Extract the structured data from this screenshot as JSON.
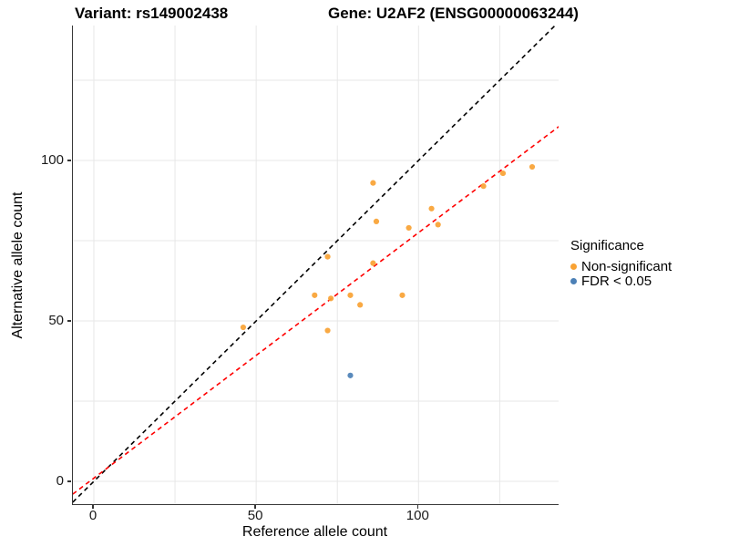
{
  "titles": {
    "variant": "Variant: rs149002438",
    "gene": "Gene: U2AF2 (ENSG00000063244)"
  },
  "axes": {
    "x": {
      "label": "Reference allele count",
      "ticks": [
        0,
        50,
        100
      ]
    },
    "y": {
      "label": "Alternative allele count",
      "ticks": [
        0,
        50,
        100
      ]
    }
  },
  "legend": {
    "title": "Significance",
    "items": [
      {
        "label": "Non-significant",
        "color": "#f9a233"
      },
      {
        "label": "FDR < 0.05",
        "color": "#4c80b6"
      }
    ]
  },
  "colors": {
    "grid": "#e7e7e7",
    "axis_line": "#383838",
    "identity_line": "#000000",
    "fit_line": "#ff0000"
  },
  "chart_data": {
    "type": "scatter",
    "title": "Variant: rs149002438  Gene: U2AF2 (ENSG00000063244)",
    "xlabel": "Reference allele count",
    "ylabel": "Alternative allele count",
    "xlim": [
      -6.5,
      143.2
    ],
    "ylim": [
      -7.1,
      142.0
    ],
    "grid": "on",
    "grid_interval": 25,
    "legend_position": "right",
    "series": [
      {
        "name": "Non-significant",
        "color": "#f9a233",
        "points": [
          [
            46,
            48
          ],
          [
            68,
            58
          ],
          [
            72,
            47
          ],
          [
            72,
            70
          ],
          [
            73,
            57
          ],
          [
            79,
            58
          ],
          [
            82,
            55
          ],
          [
            86,
            68
          ],
          [
            86,
            93
          ],
          [
            87,
            81
          ],
          [
            95,
            58
          ],
          [
            97,
            79
          ],
          [
            104,
            85
          ],
          [
            106,
            80
          ],
          [
            120,
            92
          ],
          [
            126,
            96
          ],
          [
            135,
            98
          ]
        ]
      },
      {
        "name": "FDR < 0.05",
        "color": "#4c80b6",
        "points": [
          [
            79,
            33
          ]
        ]
      }
    ],
    "lines": [
      {
        "name": "identity",
        "slope": 1,
        "intercept": 0,
        "color": "#000000",
        "style": "dashed"
      },
      {
        "name": "fit",
        "slope": 0.765,
        "intercept": 1.0,
        "color": "#ff0000",
        "style": "dashed"
      }
    ]
  }
}
